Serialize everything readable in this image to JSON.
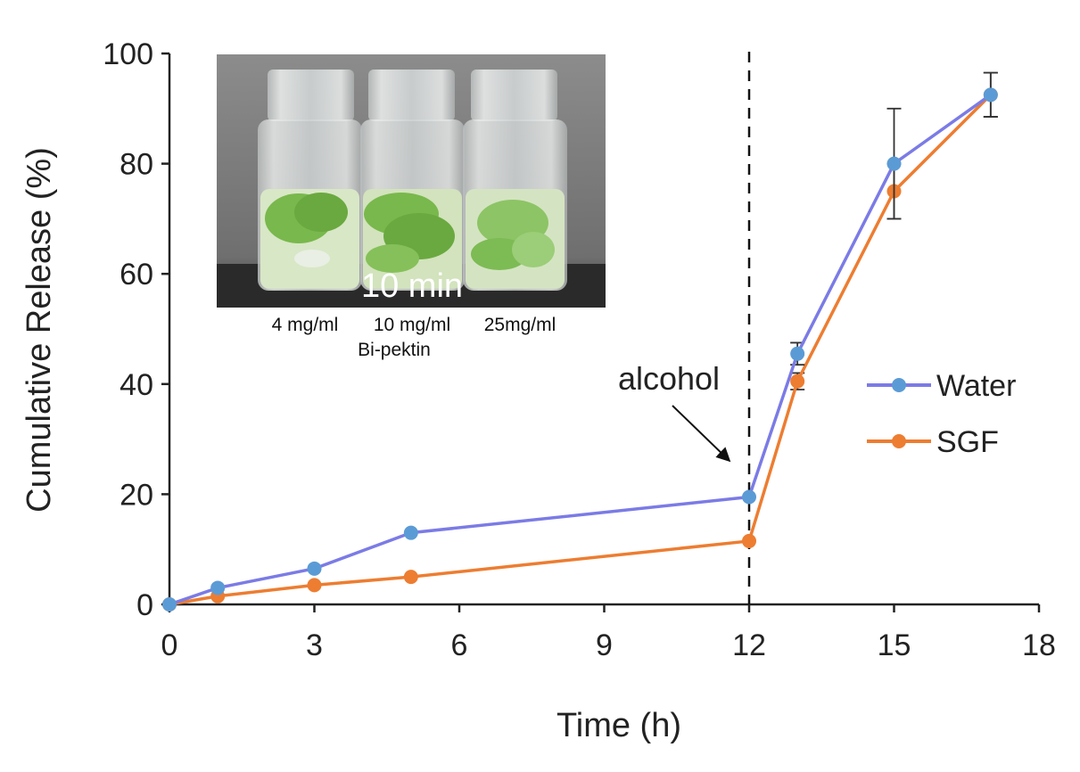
{
  "chart_data": {
    "type": "line",
    "xlabel": "Time (h)",
    "ylabel": "Cumulative Release (%)",
    "xlim": [
      0,
      18
    ],
    "ylim": [
      0,
      100
    ],
    "xticks": [
      0,
      3,
      6,
      9,
      12,
      15,
      18
    ],
    "yticks": [
      0,
      20,
      40,
      60,
      80,
      100
    ],
    "grid": false,
    "legend_position": "right",
    "series": [
      {
        "name": "Water",
        "color": "#7b7be6",
        "marker_color": "#5b9bd5",
        "x": [
          0,
          1,
          3,
          5,
          12,
          13,
          15,
          17
        ],
        "y": [
          0,
          3,
          6.5,
          13,
          19.5,
          45.5,
          80,
          92.5
        ],
        "error": [
          0,
          0,
          0,
          0,
          0,
          2,
          10,
          4
        ]
      },
      {
        "name": "SGF",
        "color": "#ed7d31",
        "marker_color": "#ed7d31",
        "x": [
          0,
          1,
          3,
          5,
          12,
          13,
          15,
          17
        ],
        "y": [
          0,
          1.5,
          3.5,
          5,
          11.5,
          40.5,
          75,
          92.5
        ],
        "error": [
          0,
          0,
          0,
          0,
          0,
          1.5,
          5,
          4
        ]
      }
    ],
    "vertical_line": {
      "x": 12,
      "style": "dashed"
    },
    "annotation": {
      "text": "alcohol",
      "points_to_x": 12
    },
    "inset": {
      "time_label": "10 min",
      "vial_labels": [
        "4 mg/ml",
        "10 mg/ml",
        "25mg/ml"
      ],
      "group_label": "Bi-pektin"
    }
  }
}
